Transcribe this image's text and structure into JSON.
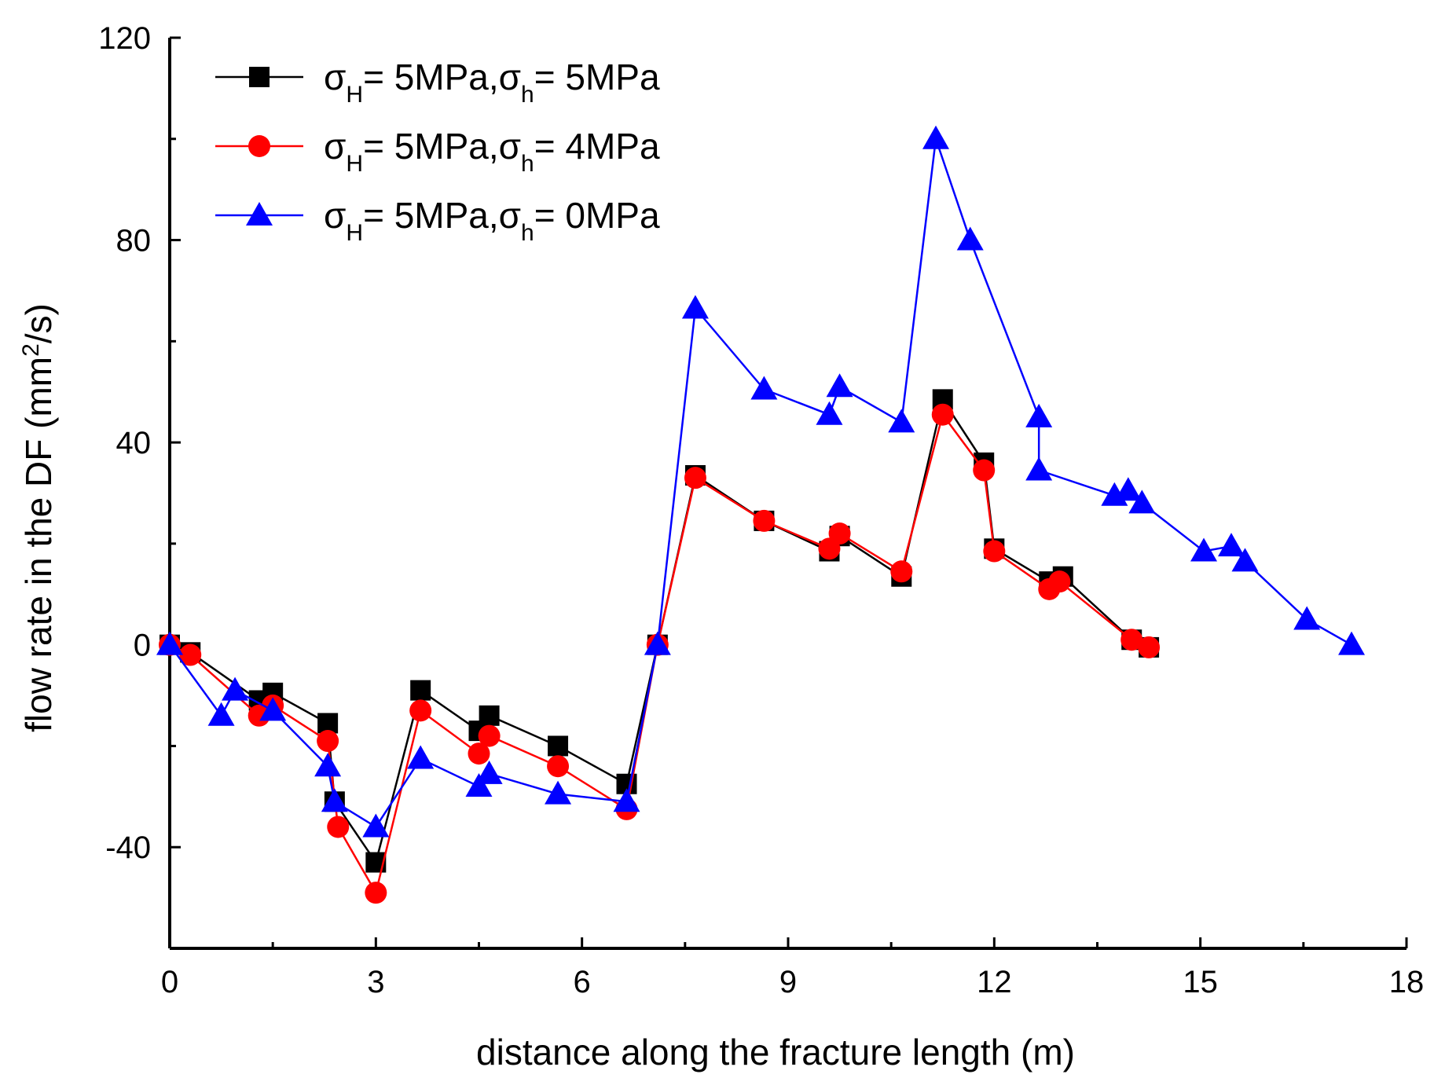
{
  "chart_data": {
    "type": "line",
    "title": "",
    "xlabel": "distance along the fracture length (m)",
    "ylabel": {
      "pre": "flow rate in the DF (mm",
      "sup": "2",
      "post": "/s)"
    },
    "xlim": [
      0,
      18
    ],
    "ylim": [
      -60,
      120
    ],
    "xticks": [
      0,
      3,
      6,
      9,
      12,
      15,
      18
    ],
    "yticks": [
      -40,
      0,
      40,
      80,
      120
    ],
    "legend_position": "top-left",
    "series": [
      {
        "name": "σH= 5MPa,σh= 5MPa",
        "legend": {
          "s1": "σ",
          "sub1": "H",
          "mid": "= 5MPa,",
          "s2": "σ",
          "sub2": "h",
          "tail": "= 5MPa"
        },
        "color": "#000000",
        "marker": "square",
        "points": [
          [
            0,
            0
          ],
          [
            0.3,
            -1.5
          ],
          [
            1.3,
            -11
          ],
          [
            1.5,
            -9.5
          ],
          [
            2.3,
            -15.5
          ],
          [
            2.4,
            -31
          ],
          [
            3.0,
            -43
          ],
          [
            3.65,
            -9
          ],
          [
            4.5,
            -17
          ],
          [
            4.65,
            -14
          ],
          [
            5.65,
            -20
          ],
          [
            6.65,
            -27.5
          ],
          [
            7.1,
            0
          ],
          [
            7.65,
            33.5
          ],
          [
            8.65,
            24.5
          ],
          [
            9.6,
            18.5
          ],
          [
            9.75,
            21.5
          ],
          [
            10.65,
            13.5
          ],
          [
            11.25,
            48.5
          ],
          [
            11.85,
            36
          ],
          [
            12.0,
            19
          ],
          [
            12.8,
            12.5
          ],
          [
            13.0,
            13.5
          ],
          [
            14.0,
            1
          ],
          [
            14.25,
            -0.5
          ]
        ]
      },
      {
        "name": "σH= 5MPa,σh= 4MPa",
        "legend": {
          "s1": "σ",
          "sub1": "H",
          "mid": "= 5MPa,",
          "s2": "σ",
          "sub2": "h",
          "tail": "= 4MPa"
        },
        "color": "#ff0000",
        "marker": "circle",
        "points": [
          [
            0,
            0
          ],
          [
            0.3,
            -2
          ],
          [
            1.3,
            -14
          ],
          [
            1.5,
            -12
          ],
          [
            2.3,
            -19
          ],
          [
            2.45,
            -36
          ],
          [
            3.0,
            -49
          ],
          [
            3.65,
            -13
          ],
          [
            4.5,
            -21.5
          ],
          [
            4.65,
            -18
          ],
          [
            5.65,
            -24
          ],
          [
            6.65,
            -32.5
          ],
          [
            7.1,
            0
          ],
          [
            7.65,
            33
          ],
          [
            8.65,
            24.5
          ],
          [
            9.6,
            19
          ],
          [
            9.75,
            22
          ],
          [
            10.65,
            14.5
          ],
          [
            11.25,
            45.5
          ],
          [
            11.85,
            34.5
          ],
          [
            12.0,
            18.5
          ],
          [
            12.8,
            11
          ],
          [
            12.95,
            12.5
          ],
          [
            14.0,
            1
          ],
          [
            14.25,
            -0.5
          ]
        ]
      },
      {
        "name": "σH= 5MPa,σh= 0MPa",
        "legend": {
          "s1": "σ",
          "sub1": "H",
          "mid": "= 5MPa,",
          "s2": "σ",
          "sub2": "h",
          "tail": "= 0MPa"
        },
        "color": "#0000ff",
        "marker": "triangle",
        "points": [
          [
            0,
            0
          ],
          [
            0.75,
            -14
          ],
          [
            0.95,
            -9
          ],
          [
            1.5,
            -13
          ],
          [
            2.3,
            -24
          ],
          [
            2.4,
            -31
          ],
          [
            3.0,
            -36
          ],
          [
            3.65,
            -22.5
          ],
          [
            4.5,
            -28
          ],
          [
            4.65,
            -25.5
          ],
          [
            5.65,
            -29.5
          ],
          [
            6.65,
            -31
          ],
          [
            7.1,
            0
          ],
          [
            7.65,
            66.5
          ],
          [
            8.65,
            50.5
          ],
          [
            9.6,
            45.5
          ],
          [
            9.75,
            51
          ],
          [
            10.65,
            44
          ],
          [
            11.15,
            100
          ],
          [
            11.65,
            80
          ],
          [
            12.65,
            45
          ],
          [
            12.65,
            34.5
          ],
          [
            13.75,
            29.5
          ],
          [
            13.95,
            30.5
          ],
          [
            14.15,
            28
          ],
          [
            15.05,
            18.5
          ],
          [
            15.45,
            19.5
          ],
          [
            15.65,
            16.5
          ],
          [
            16.55,
            5
          ],
          [
            17.2,
            0
          ]
        ]
      }
    ]
  }
}
